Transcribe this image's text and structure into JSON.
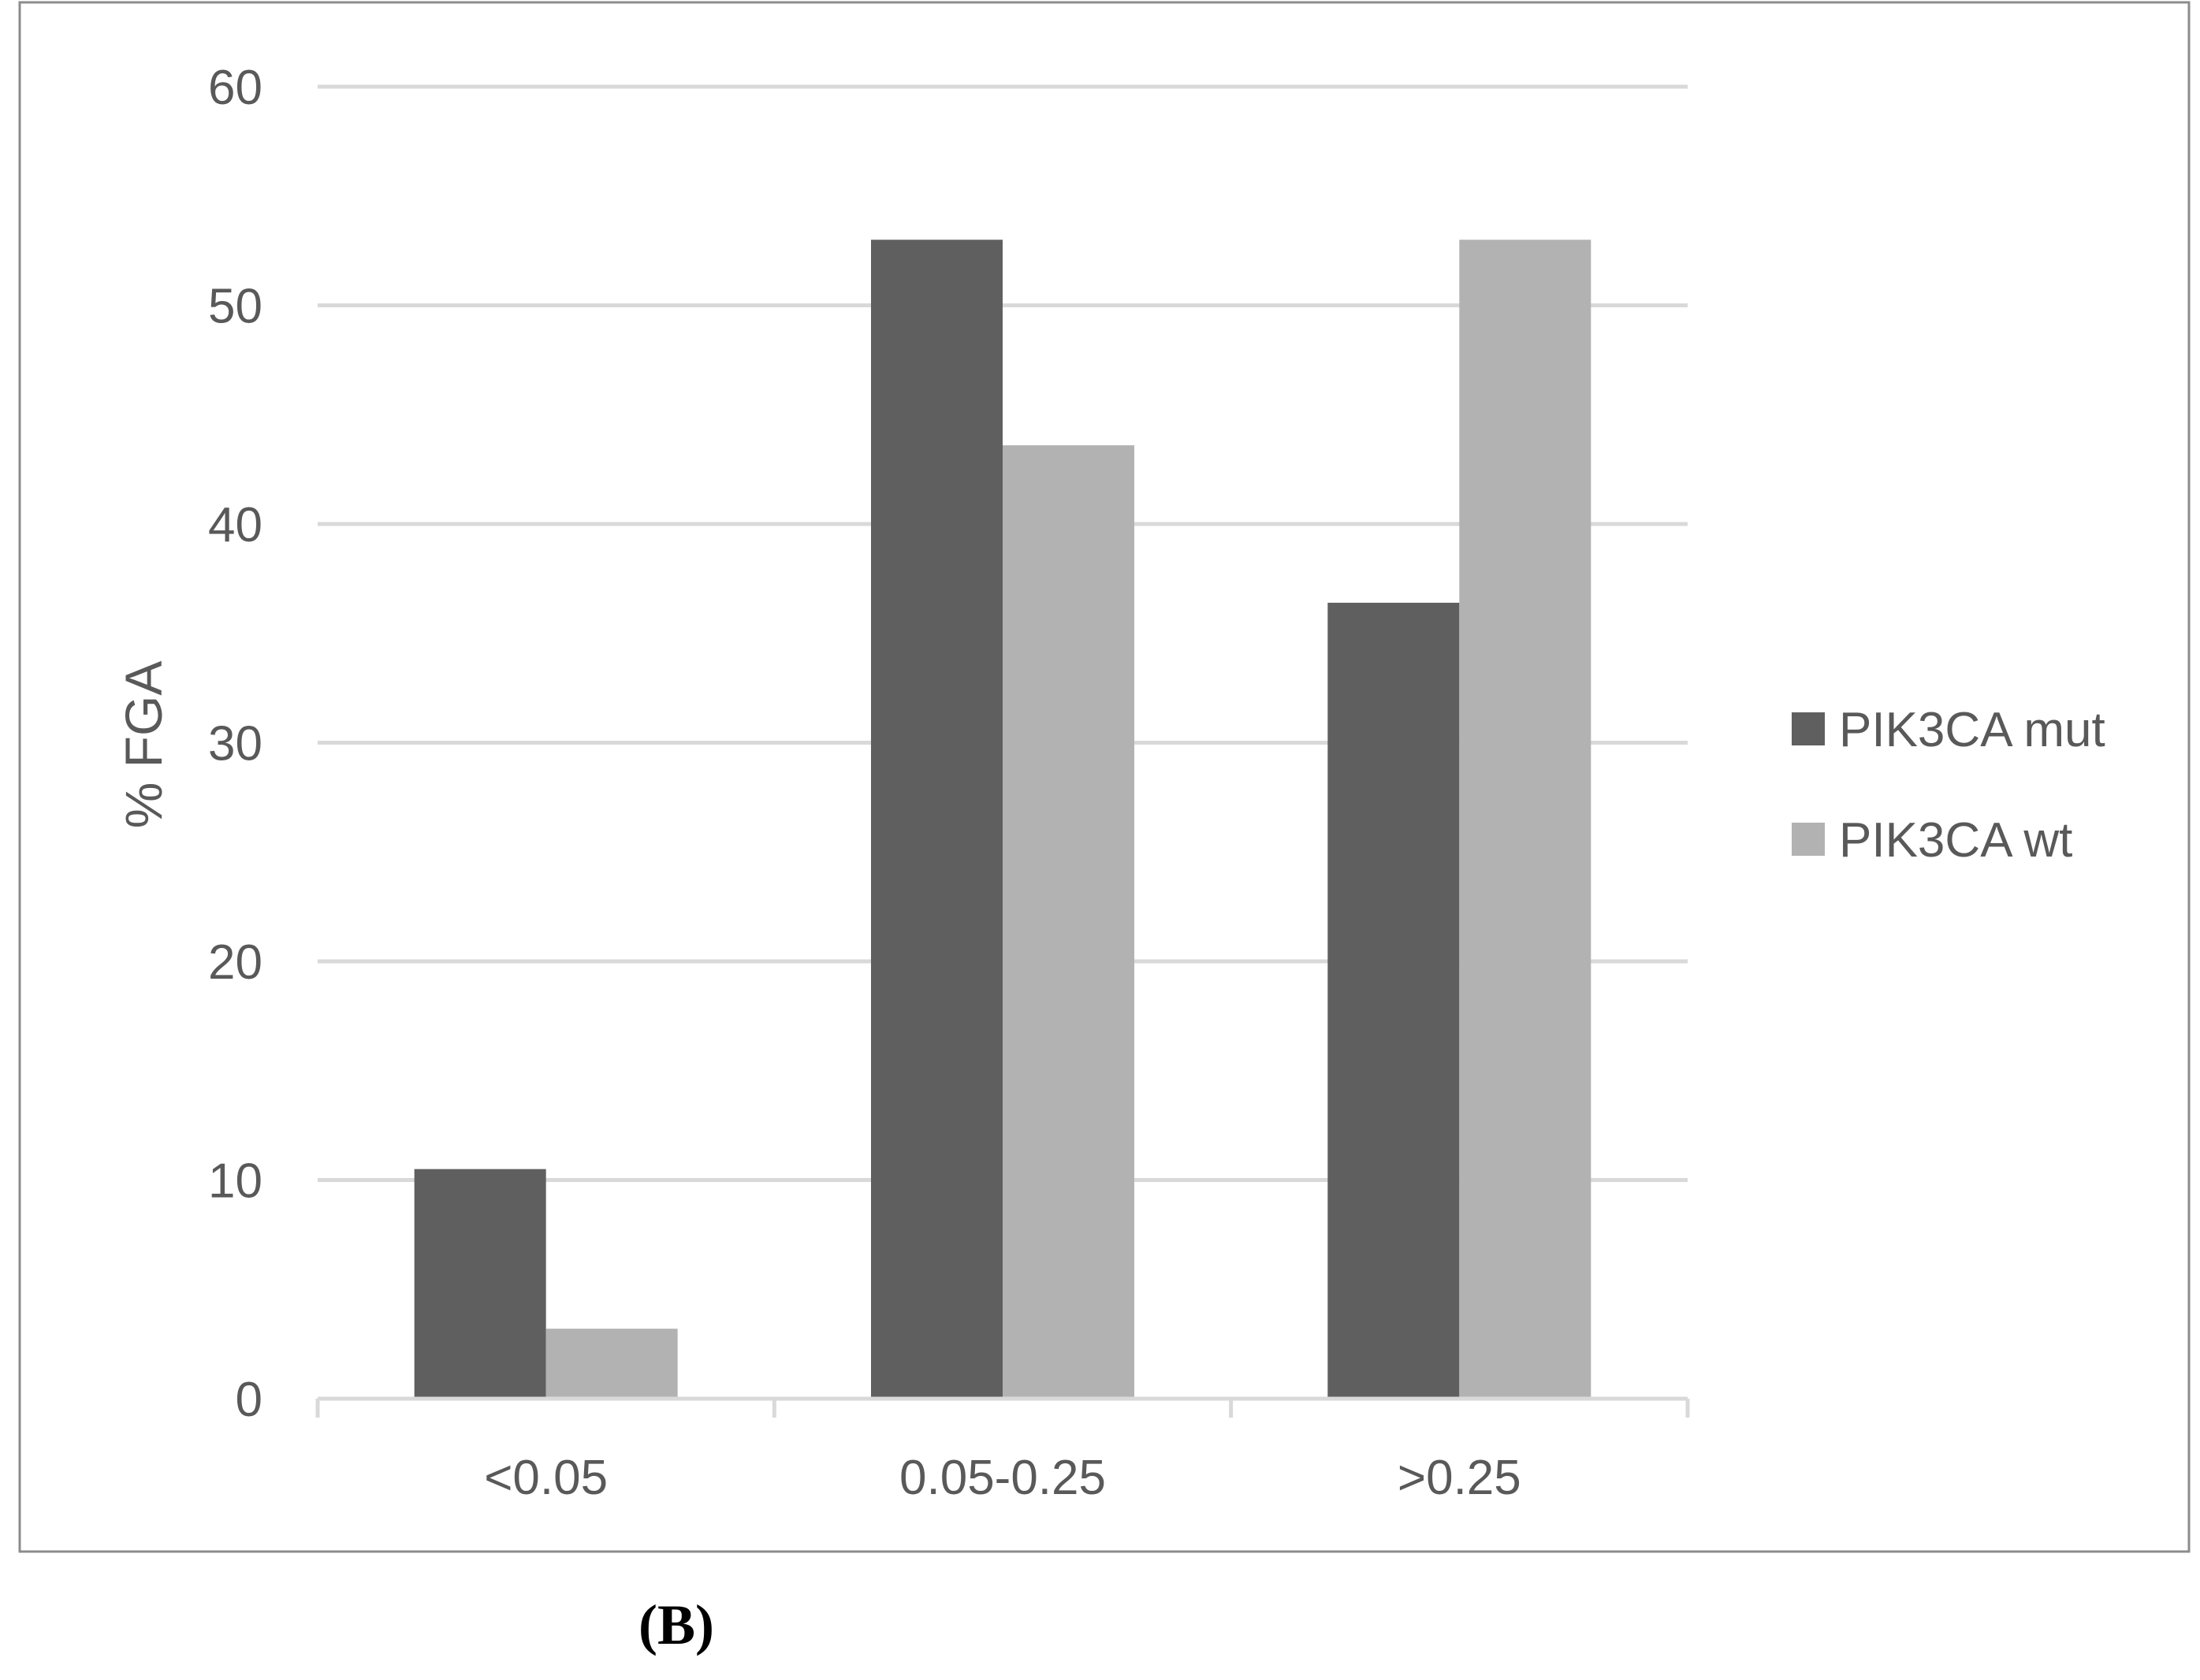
{
  "chart_data": {
    "type": "bar",
    "title": "",
    "xlabel": "",
    "ylabel": "% FGA",
    "ylim": [
      0,
      60
    ],
    "yticks": [
      0,
      10,
      20,
      30,
      40,
      50,
      60
    ],
    "grid": true,
    "legend_position": "right",
    "categories": [
      "<0.05",
      "0.05-0.25",
      ">0.25"
    ],
    "series": [
      {
        "name": "PIK3CA mut",
        "color": "#5f5f5f",
        "values": [
          10.5,
          53.0,
          36.4
        ]
      },
      {
        "name": "PIK3CA wt",
        "color": "#b2b2b2",
        "values": [
          3.2,
          43.6,
          53.0
        ]
      }
    ]
  },
  "panel_label": "(B)"
}
